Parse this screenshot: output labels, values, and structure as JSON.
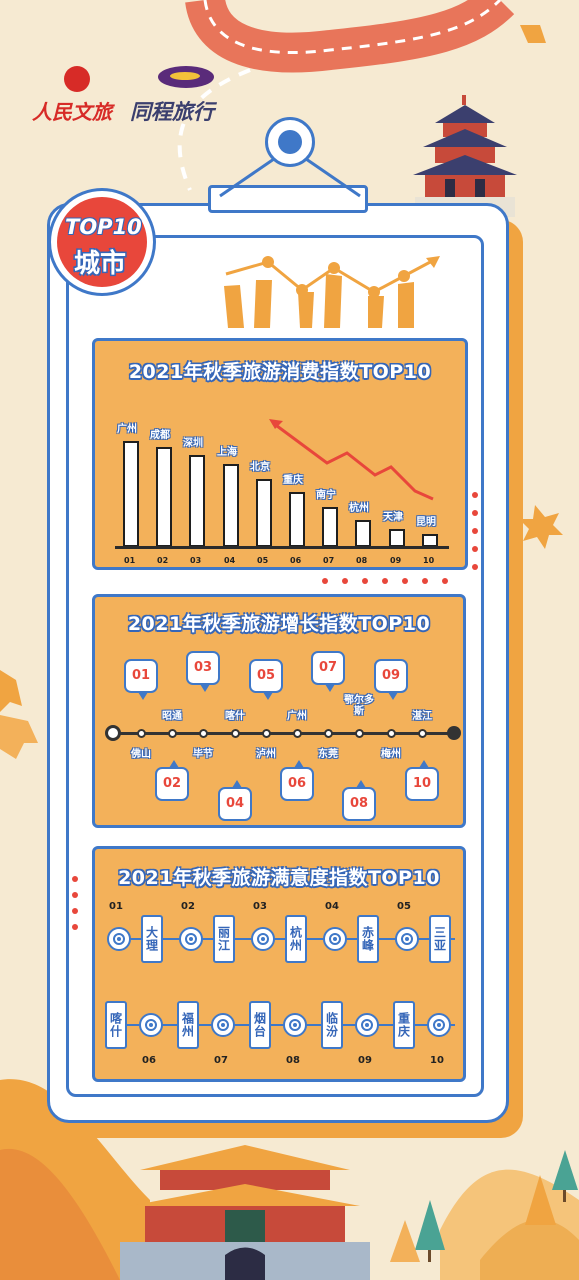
{
  "brand": {
    "left_name": "人民文旅",
    "right_name": "同程旅行"
  },
  "badge": {
    "line1": "TOP10",
    "line2": "城市"
  },
  "consumption": {
    "title": "2021年秋季旅游消费指数TOP10",
    "chart_data": {
      "type": "bar",
      "title": "2021年秋季旅游消费指数TOP10",
      "categories": [
        "01",
        "02",
        "03",
        "04",
        "05",
        "06",
        "07",
        "08",
        "09",
        "10"
      ],
      "cities": [
        "广州",
        "成都",
        "深圳",
        "上海",
        "北京",
        "重庆",
        "南宁",
        "杭州",
        "天津",
        "昆明"
      ],
      "values": [
        100,
        94,
        87,
        78,
        64,
        52,
        38,
        25,
        17,
        12
      ]
    }
  },
  "growth": {
    "title": "2021年秋季旅游增长指数TOP10",
    "ranks": [
      "01",
      "02",
      "03",
      "04",
      "05",
      "06",
      "07",
      "08",
      "09",
      "10"
    ],
    "cities": [
      "佛山",
      "昭通",
      "毕节",
      "喀什",
      "泸州",
      "广州",
      "东莞",
      "鄂尔多斯",
      "梅州",
      "湛江"
    ]
  },
  "satisfaction": {
    "title": "2021年秋季旅游满意度指数TOP10",
    "ranks": [
      "01",
      "02",
      "03",
      "04",
      "05",
      "06",
      "07",
      "08",
      "09",
      "10"
    ],
    "cities": [
      "大理",
      "丽江",
      "杭州",
      "赤峰",
      "三亚",
      "喀什",
      "福州",
      "烟台",
      "临汾",
      "重庆"
    ]
  },
  "colors": {
    "orange": "#f3b15a",
    "blue": "#3f78c8",
    "red": "#e8473b",
    "cream": "#f6ead2"
  }
}
